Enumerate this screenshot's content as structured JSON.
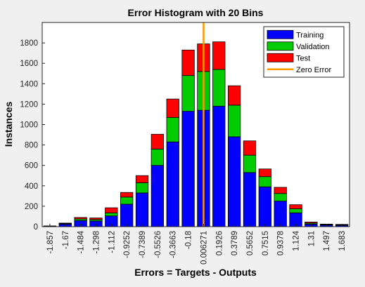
{
  "chart_data": {
    "type": "bar",
    "stacked": true,
    "title": "Error Histogram with 20 Bins",
    "xlabel": "Errors = Targets - Outputs",
    "ylabel": "Instances",
    "ylim": [
      0,
      2000
    ],
    "yticks": [
      0,
      200,
      400,
      600,
      800,
      1000,
      1200,
      1400,
      1600,
      1800
    ],
    "categories": [
      "-1.857",
      "-1.67",
      "-1.484",
      "-1.298",
      "-1.112",
      "-0.9252",
      "-0.7389",
      "-0.5526",
      "-0.3663",
      "-0.18",
      "0.006271",
      "0.1926",
      "0.3789",
      "0.5652",
      "0.7515",
      "0.9378",
      "1.124",
      "1.31",
      "1.497",
      "1.683"
    ],
    "series": [
      {
        "name": "Training",
        "color": "#0000ff",
        "values": [
          3,
          25,
          60,
          55,
          105,
          220,
          330,
          600,
          830,
          1130,
          1140,
          1180,
          880,
          530,
          390,
          250,
          135,
          25,
          15,
          12
        ]
      },
      {
        "name": "Validation",
        "color": "#00cc00",
        "values": [
          2,
          5,
          15,
          15,
          30,
          70,
          100,
          160,
          240,
          350,
          380,
          360,
          310,
          170,
          100,
          75,
          40,
          10,
          5,
          5
        ]
      },
      {
        "name": "Test",
        "color": "#ff0000",
        "values": [
          2,
          5,
          15,
          15,
          50,
          45,
          70,
          145,
          180,
          250,
          270,
          270,
          190,
          140,
          75,
          60,
          40,
          10,
          5,
          5
        ]
      }
    ],
    "reference_line": {
      "name": "Zero Error",
      "x": 0.006271,
      "color": "#ff9900"
    },
    "legend_position": "top-right",
    "grid": false
  }
}
